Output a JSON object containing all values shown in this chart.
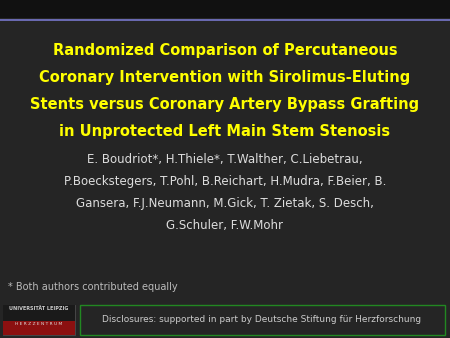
{
  "background_color": "#252525",
  "top_bar_color": "#111111",
  "top_line_color": "#6666bb",
  "title_lines": [
    "Randomized Comparison of Percutaneous",
    "Coronary Intervention with Sirolimus-Eluting",
    "Stents versus Coronary Artery Bypass Grafting",
    "in Unprotected Left Main Stem Stenosis"
  ],
  "title_color": "#ffff00",
  "title_fontsize": 10.5,
  "title_bold": true,
  "authors_lines": [
    "E. Boudriot*, H.Thiele*, T.Walther, C.Liebetrau,",
    "P.Boeckstegers, T.Pohl, B.Reichart, H.Mudra, F.Beier, B.",
    "Gansera, F.J.Neumann, M.Gick, T. Zietak, S. Desch,",
    "G.Schuler, F.W.Mohr"
  ],
  "authors_color": "#dddddd",
  "authors_fontsize": 8.5,
  "footnote_text": "* Both authors contributed equally",
  "footnote_color": "#bbbbbb",
  "footnote_fontsize": 7.0,
  "disclosure_text": "Disclosures: supported in part by Deutsche Stiftung für Herzforschung",
  "disclosure_color": "#cccccc",
  "disclosure_fontsize": 6.5,
  "disclosure_box_color": "#228822",
  "logo_text_line1": "UNIVERSITÄT LEIPZIG",
  "logo_text_line2": "H E R Z Z E N T R U M"
}
